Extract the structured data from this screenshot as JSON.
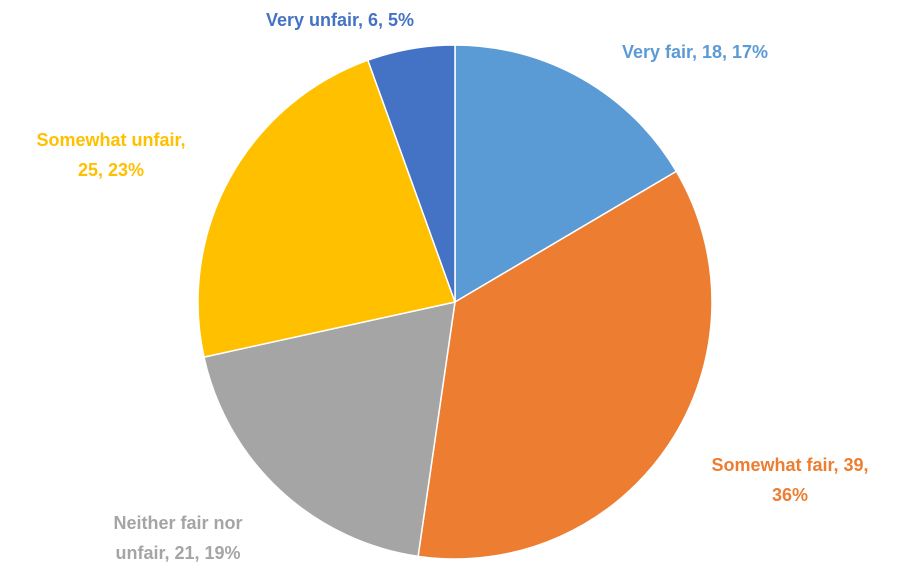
{
  "chart_data": {
    "type": "pie",
    "categories": [
      "Very fair",
      "Somewhat fair",
      "Neither fair nor unfair",
      "Somewhat unfair",
      "Very unfair"
    ],
    "values": [
      18,
      39,
      21,
      25,
      6
    ],
    "value_labels": [
      "Very fair, 18, 17%",
      "Somewhat fair, 39, 36%",
      "Neither fair nor unfair, 21, 19%",
      "Somewhat unfair, 25, 23%",
      "Very unfair, 6, 5%"
    ],
    "colors": [
      "#5b9bd5",
      "#ed7d31",
      "#a5a5a5",
      "#ffc000",
      "#4472c4"
    ],
    "label_colors": [
      "#5b9bd5",
      "#ed7d31",
      "#a5a5a5",
      "#ffc000",
      "#4472c4"
    ]
  }
}
